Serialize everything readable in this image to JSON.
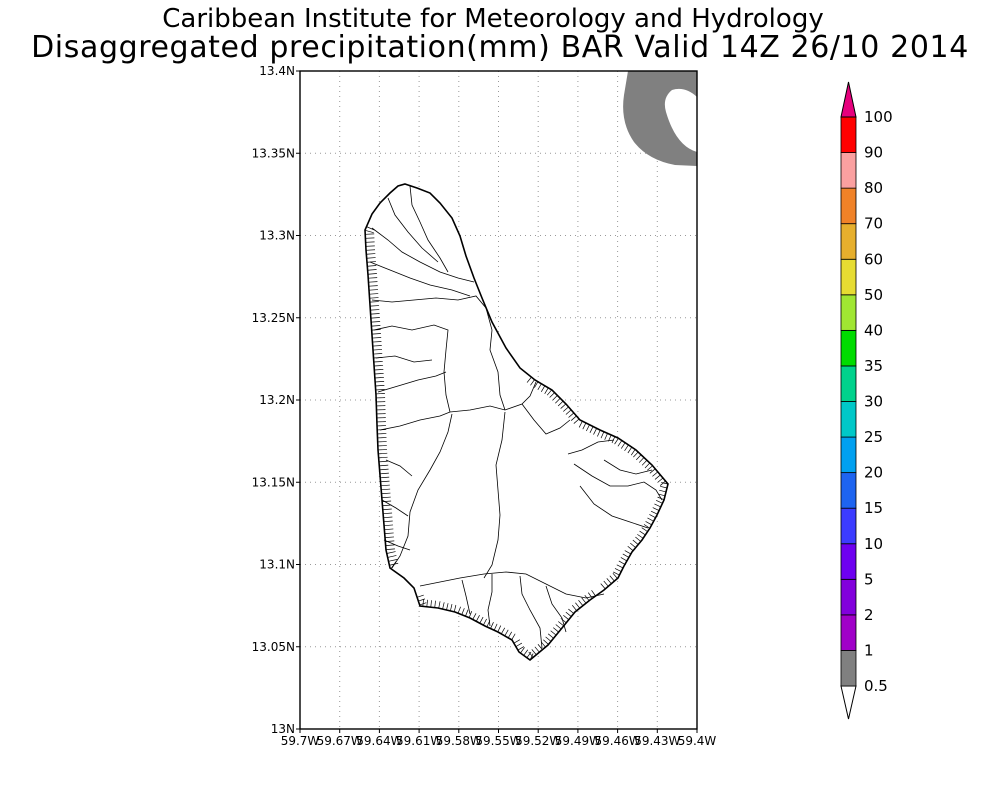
{
  "header": {
    "title": "Caribbean Institute for Meteorology and Hydrology",
    "subtitle": "Disaggregated precipitation(mm) BAR Valid 14Z 26/10 2014"
  },
  "map": {
    "lat_ticks": [
      "13.4N",
      "13.35N",
      "13.3N",
      "13.25N",
      "13.2N",
      "13.15N",
      "13.1N",
      "13.05N",
      "13N"
    ],
    "lon_ticks": [
      "59.7W",
      "59.67W",
      "59.64W",
      "59.61W",
      "59.58W",
      "59.55W",
      "59.52W",
      "59.49W",
      "59.46W",
      "59.43W",
      "59.4W"
    ],
    "land_fill": "#ffffff",
    "rain_fill": "#808080",
    "grid": true
  },
  "colorbar": {
    "levels": [
      "0.5",
      "1",
      "2",
      "5",
      "10",
      "15",
      "20",
      "25",
      "30",
      "35",
      "40",
      "50",
      "60",
      "70",
      "80",
      "90",
      "100"
    ],
    "colors": [
      "#808080",
      "#a000c8",
      "#8200dc",
      "#6e00f0",
      "#3c3cff",
      "#1e64f0",
      "#00a0f0",
      "#00c8c8",
      "#00d28c",
      "#00dc00",
      "#a0e632",
      "#e6dc32",
      "#e6af2d",
      "#f08228",
      "#faa0a0",
      "#ff0000",
      "#f03c3c",
      "#e6007d"
    ]
  }
}
